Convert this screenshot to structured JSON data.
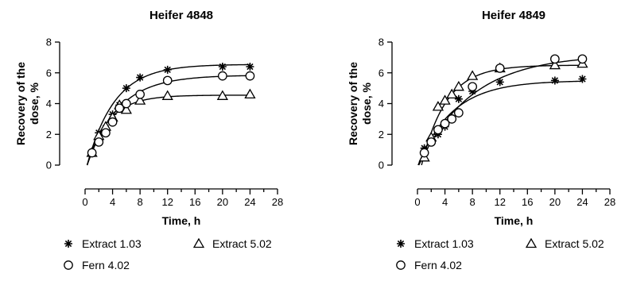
{
  "chart_data": [
    {
      "type": "scatter",
      "title": "Heifer 4848",
      "xlabel": "Time, h",
      "ylabel": "Recovery of the dose, %",
      "ylabel_lines": [
        "Recovery of the",
        "dose, %"
      ],
      "xlim": [
        0,
        28
      ],
      "ylim": [
        0,
        8
      ],
      "xticks": [
        0,
        2,
        4,
        6,
        8,
        10,
        12,
        14,
        16,
        18,
        20,
        22,
        24,
        26,
        28
      ],
      "yticks": [
        0,
        2,
        4,
        6,
        8
      ],
      "series": [
        {
          "name": "Extract 1.03",
          "marker": "asterisk",
          "x": [
            1,
            2,
            3,
            4,
            5,
            6,
            8,
            12,
            20,
            24
          ],
          "y": [
            0.8,
            2.1,
            2.4,
            3.3,
            3.9,
            5.0,
            5.7,
            6.2,
            6.4,
            6.4
          ],
          "fit": {
            "plateau": 6.55,
            "k": 0.25,
            "x0": 0.3
          }
        },
        {
          "name": "Extract 5.02",
          "marker": "triangle",
          "x": [
            1,
            2,
            3,
            4,
            5,
            6,
            8,
            12,
            20,
            24
          ],
          "y": [
            0.8,
            1.9,
            2.5,
            3.1,
            3.9,
            3.6,
            4.2,
            4.5,
            4.5,
            4.6
          ],
          "fit": {
            "plateau": 4.55,
            "k": 0.32,
            "x0": 0.3
          }
        },
        {
          "name": "Fern 4.02",
          "marker": "circle",
          "x": [
            1,
            2,
            3,
            4,
            5,
            6,
            8,
            12,
            20,
            24
          ],
          "y": [
            0.8,
            1.5,
            2.1,
            2.8,
            3.7,
            4.0,
            4.6,
            5.5,
            5.8,
            5.8
          ],
          "fit": {
            "plateau": 5.85,
            "k": 0.22,
            "x0": 0.3
          }
        }
      ]
    },
    {
      "type": "scatter",
      "title": "Heifer 4849",
      "xlabel": "Time, h",
      "ylabel": "Recovery of the dose, %",
      "ylabel_lines": [
        "Recovery of the",
        "dose, %"
      ],
      "xlim": [
        0,
        28
      ],
      "ylim": [
        0,
        8
      ],
      "xticks": [
        0,
        2,
        4,
        6,
        8,
        10,
        12,
        14,
        16,
        18,
        20,
        22,
        24,
        26,
        28
      ],
      "yticks": [
        0,
        2,
        4,
        6,
        8
      ],
      "series": [
        {
          "name": "Extract 1.03",
          "marker": "asterisk",
          "x": [
            1,
            2,
            3,
            4,
            5,
            6,
            8,
            12,
            20,
            24
          ],
          "y": [
            1.1,
            1.5,
            2.0,
            2.5,
            3.0,
            4.3,
            4.8,
            5.4,
            5.5,
            5.6
          ],
          "fit": {
            "plateau": 5.5,
            "k": 0.2,
            "x0": 0.1
          }
        },
        {
          "name": "Extract 5.02",
          "marker": "triangle",
          "x": [
            1,
            2,
            3,
            4,
            5,
            6,
            8,
            12,
            20,
            24
          ],
          "y": [
            0.5,
            1.8,
            3.8,
            4.2,
            4.6,
            5.1,
            5.8,
            6.3,
            6.5,
            6.6
          ],
          "fit": {
            "plateau": 6.5,
            "k": 0.28,
            "x0": 0.6
          }
        },
        {
          "name": "Fern 4.02",
          "marker": "circle",
          "x": [
            1,
            2,
            3,
            4,
            5,
            6,
            8,
            12,
            20,
            24
          ],
          "y": [
            0.8,
            1.5,
            2.3,
            2.7,
            3.0,
            3.4,
            5.1,
            6.3,
            6.9,
            6.9
          ],
          "fit": {
            "plateau": 7.2,
            "k": 0.13,
            "x0": 0.2
          }
        }
      ]
    }
  ]
}
